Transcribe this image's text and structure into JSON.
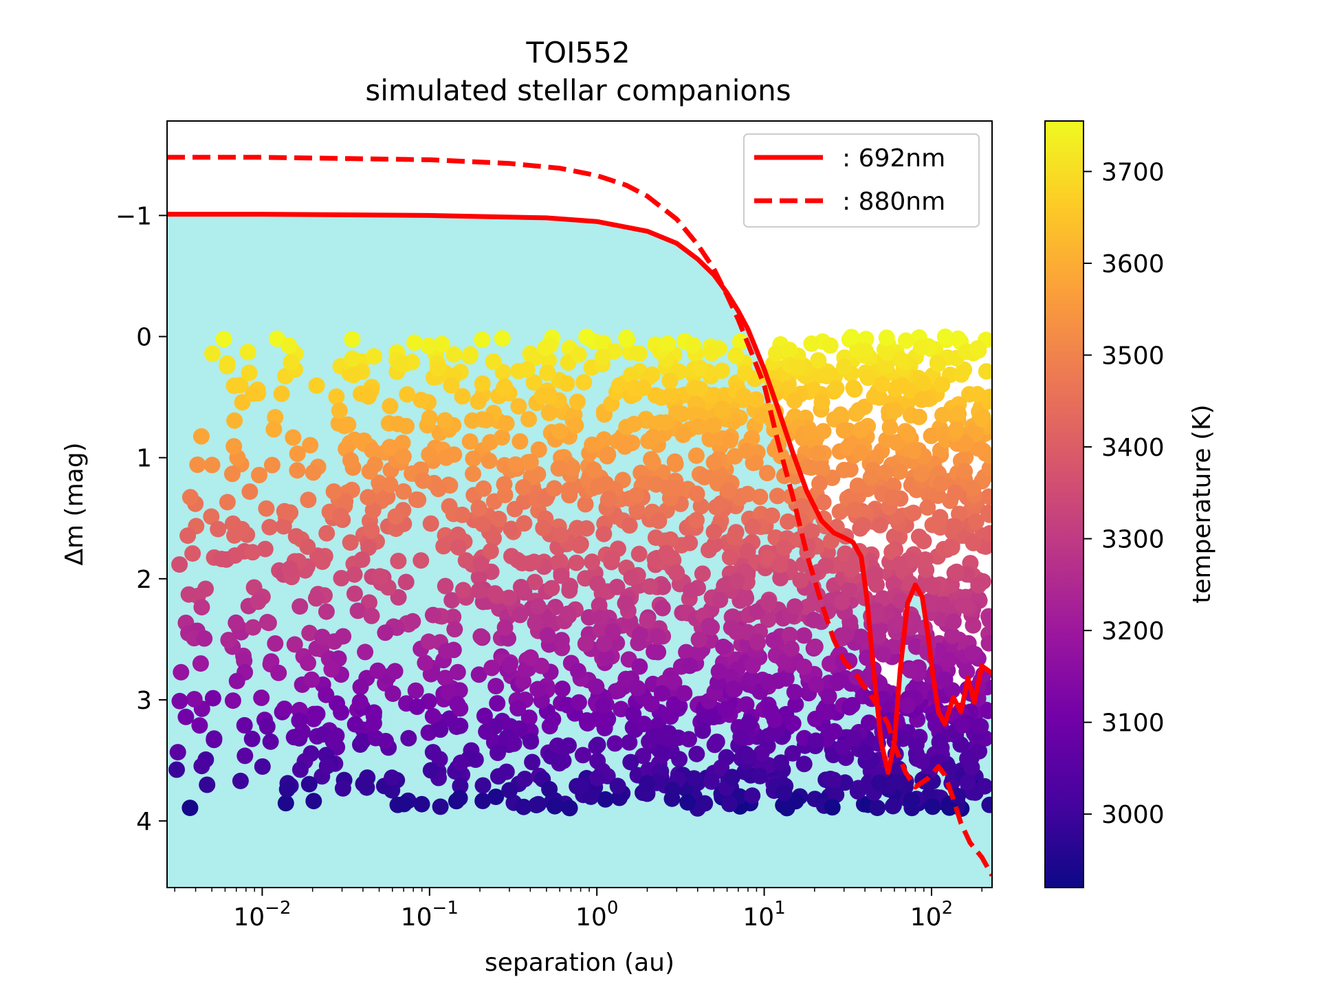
{
  "chart_data": {
    "type": "scatter",
    "title": "TOI552",
    "subtitle": "simulated stellar companions",
    "xlabel": "separation (au)",
    "ylabel": "Δm (mag)",
    "xscale": "log",
    "xlim": [
      0.0027,
      230
    ],
    "ylim": [
      4.55,
      -1.78
    ],
    "xticks": [
      {
        "value": 0.01,
        "base": "10",
        "exp": "−2"
      },
      {
        "value": 0.1,
        "base": "10",
        "exp": "−1"
      },
      {
        "value": 1,
        "base": "10",
        "exp": "0"
      },
      {
        "value": 10,
        "base": "10",
        "exp": "1"
      },
      {
        "value": 100,
        "base": "10",
        "exp": "2"
      }
    ],
    "yticks": [
      {
        "value": -1,
        "label": "−1"
      },
      {
        "value": 0,
        "label": "0"
      },
      {
        "value": 1,
        "label": "1"
      },
      {
        "value": 2,
        "label": "2"
      },
      {
        "value": 3,
        "label": "3"
      },
      {
        "value": 4,
        "label": "4"
      }
    ],
    "colorbar": {
      "label": "temperature (K)",
      "range": [
        2920,
        3755
      ],
      "ticks": [
        3000,
        3100,
        3200,
        3300,
        3400,
        3500,
        3600,
        3700
      ],
      "colormap": "plasma",
      "stops": [
        "#0d0887",
        "#46039f",
        "#7201a8",
        "#9c179e",
        "#bd3786",
        "#d8576b",
        "#ed7953",
        "#fb9f3a",
        "#fdca26",
        "#f0f921"
      ]
    },
    "region_color": "#b0eded",
    "series": [
      {
        "name": ": 692nm",
        "style": "solid",
        "color": "#ff0000",
        "x": [
          0.0027,
          0.01,
          0.1,
          0.5,
          1,
          2,
          3,
          4,
          5,
          6,
          7,
          8,
          10,
          12,
          15,
          18,
          22,
          26,
          30,
          34,
          38,
          41,
          45,
          50,
          55,
          60,
          65,
          72,
          80,
          88,
          95,
          102,
          110,
          120,
          135,
          150,
          165,
          180,
          200,
          230
        ],
        "y": [
          -1.01,
          -1.01,
          -1.0,
          -0.98,
          -0.95,
          -0.87,
          -0.77,
          -0.64,
          -0.51,
          -0.36,
          -0.21,
          -0.06,
          0.27,
          0.58,
          0.98,
          1.28,
          1.52,
          1.62,
          1.66,
          1.7,
          1.82,
          2.15,
          2.75,
          3.35,
          3.6,
          3.35,
          2.75,
          2.2,
          2.05,
          2.15,
          2.45,
          2.8,
          3.1,
          3.2,
          2.98,
          3.1,
          2.82,
          3.02,
          2.72,
          2.78
        ]
      },
      {
        "name": ": 880nm",
        "style": "dashed",
        "color": "#ff0000",
        "x": [
          0.0027,
          0.01,
          0.1,
          0.3,
          0.6,
          1,
          1.5,
          2,
          3,
          4,
          5,
          6,
          7,
          8,
          10,
          12,
          15,
          18,
          22,
          26,
          30,
          35,
          40,
          45,
          50,
          55,
          60,
          70,
          80,
          95,
          110,
          120,
          135,
          150,
          170,
          200,
          230
        ],
        "y": [
          -1.48,
          -1.48,
          -1.46,
          -1.43,
          -1.39,
          -1.33,
          -1.25,
          -1.16,
          -0.97,
          -0.76,
          -0.56,
          -0.34,
          -0.14,
          0.06,
          0.4,
          0.85,
          1.35,
          1.8,
          2.2,
          2.5,
          2.68,
          2.78,
          2.9,
          3.0,
          3.1,
          3.2,
          3.38,
          3.6,
          3.72,
          3.65,
          3.55,
          3.62,
          3.82,
          4.02,
          4.18,
          4.3,
          4.45
        ]
      }
    ],
    "scatter_generation": {
      "count": 2200,
      "seed": 552,
      "color_by": "temperature",
      "log_x_range": [
        -2.55,
        2.35
      ],
      "dm_range": [
        0.0,
        3.9
      ]
    }
  }
}
